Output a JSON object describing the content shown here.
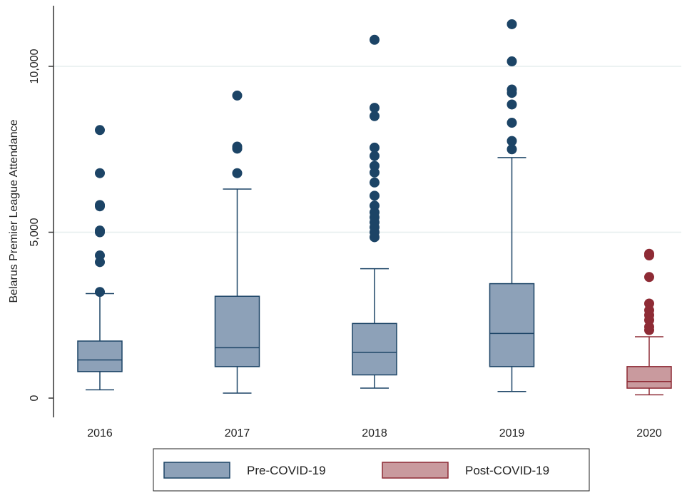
{
  "chart_data": {
    "type": "box",
    "title": "",
    "xlabel": "",
    "ylabel": "Belarus Premier League Attendance",
    "ylim": [
      0,
      11500
    ],
    "yticks": [
      {
        "value": 0,
        "label": "0"
      },
      {
        "value": 5000,
        "label": "5,000"
      },
      {
        "value": 10000,
        "label": "10,000"
      }
    ],
    "grid": true,
    "legend_position": "bottom",
    "categories": [
      "2016",
      "2017",
      "2018",
      "2019",
      "2020"
    ],
    "series": [
      {
        "name": "Pre-COVID-19",
        "color": "#8da1b8",
        "stroke": "#1c4466",
        "boxes": [
          {
            "category": "2016",
            "whisker_low": 250,
            "q1": 800,
            "median": 1150,
            "q3": 1720,
            "whisker_high": 3150,
            "outliers": [
              3200,
              4100,
              4300,
              5000,
              5050,
              5780,
              5820,
              6780,
              8080
            ]
          },
          {
            "category": "2017",
            "whisker_low": 150,
            "q1": 950,
            "median": 1520,
            "q3": 3070,
            "whisker_high": 6300,
            "outliers": [
              6780,
              7520,
              7580,
              9120
            ]
          },
          {
            "category": "2018",
            "whisker_low": 300,
            "q1": 700,
            "median": 1380,
            "q3": 2250,
            "whisker_high": 3900,
            "outliers": [
              4850,
              5000,
              5150,
              5300,
              5450,
              5600,
              5800,
              6100,
              6500,
              6800,
              7000,
              7300,
              7550,
              8500,
              8750,
              10800
            ]
          },
          {
            "category": "2019",
            "whisker_low": 200,
            "q1": 950,
            "median": 1950,
            "q3": 3450,
            "whisker_high": 7250,
            "outliers": [
              7500,
              7750,
              8300,
              8850,
              9200,
              9300,
              10150,
              11270
            ]
          }
        ]
      },
      {
        "name": "Post-COVID-19",
        "color": "#c99a9e",
        "stroke": "#8e2b35",
        "boxes": [
          {
            "category": "2020",
            "whisker_low": 100,
            "q1": 300,
            "median": 500,
            "q3": 950,
            "whisker_high": 1850,
            "outliers": [
              2050,
              2150,
              2350,
              2500,
              2650,
              2850,
              3650,
              4300,
              4350
            ]
          }
        ]
      }
    ]
  }
}
